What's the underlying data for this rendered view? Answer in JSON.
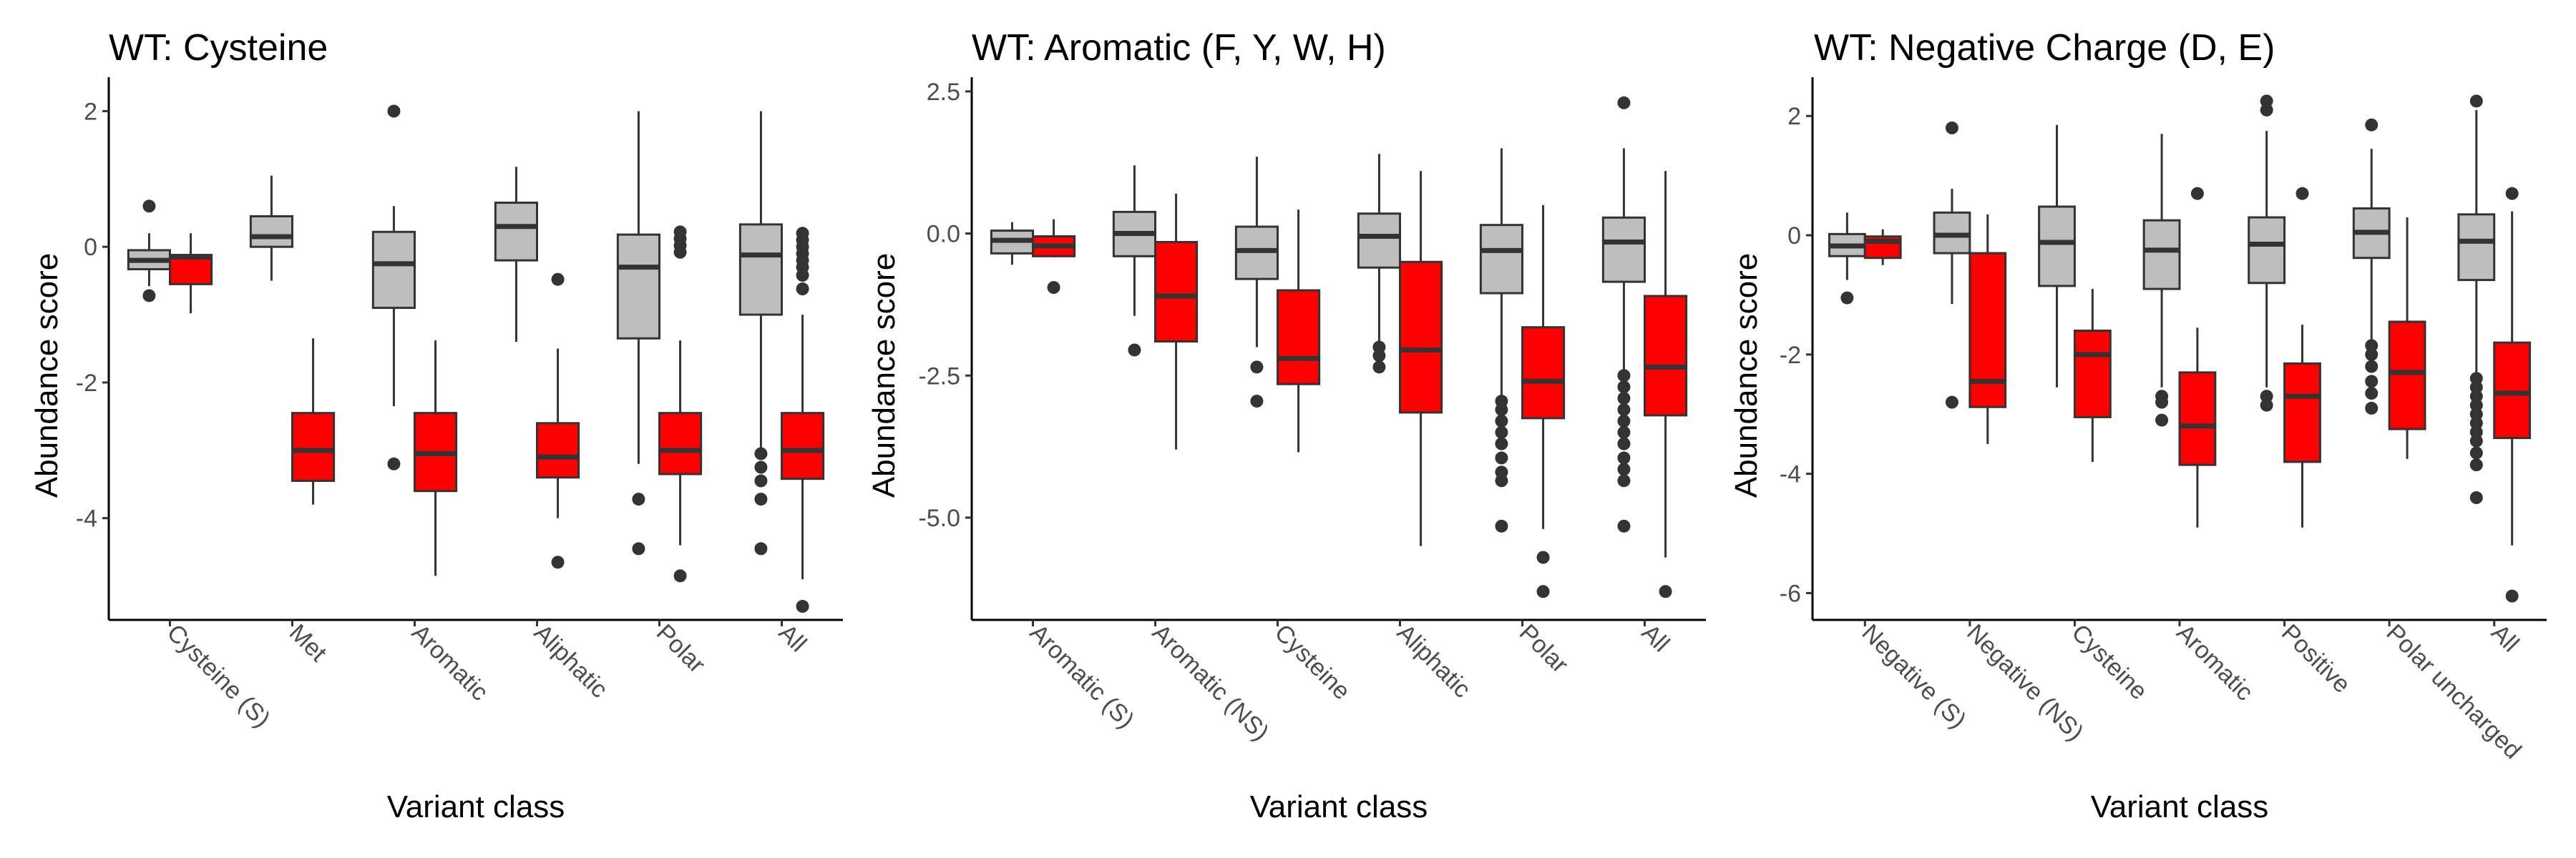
{
  "colors": {
    "WT": "#bebebe",
    "mutant": "#ff0000"
  },
  "chart_data": [
    {
      "type": "boxplot",
      "title": "WT: Cysteine",
      "xlabel": "Variant class",
      "ylabel": "Abundance score",
      "ylim": [
        -5.5,
        2.5
      ],
      "yticks": [
        2,
        0,
        -2,
        -4
      ],
      "ytick_labels": [
        "2",
        "0",
        "-2",
        "-4"
      ],
      "categories": [
        "Cysteine (S)",
        "Met",
        "Aromatic",
        "Aliphatic",
        "Polar",
        "All"
      ],
      "boxes": [
        {
          "cat": 0,
          "group": "WT",
          "whislo": -0.58,
          "q1": -0.33,
          "med": -0.2,
          "q3": -0.05,
          "whishi": 0.2,
          "fliers": [
            0.6,
            -0.72
          ]
        },
        {
          "cat": 0,
          "group": "mutant",
          "whislo": -0.98,
          "q1": -0.55,
          "med": -0.15,
          "q3": -0.12,
          "whishi": 0.2,
          "fliers": []
        },
        {
          "cat": 1,
          "group": "WT",
          "whislo": -0.5,
          "q1": 0.0,
          "med": 0.15,
          "q3": 0.45,
          "whishi": 1.05,
          "fliers": []
        },
        {
          "cat": 1,
          "group": "mutant",
          "whislo": -3.8,
          "q1": -3.45,
          "med": -3.0,
          "q3": -2.45,
          "whishi": -1.35,
          "fliers": []
        },
        {
          "cat": 2,
          "group": "WT",
          "whislo": -2.35,
          "q1": -0.9,
          "med": -0.25,
          "q3": 0.22,
          "whishi": 0.6,
          "fliers": [
            2.0,
            -3.2
          ]
        },
        {
          "cat": 2,
          "group": "mutant",
          "whislo": -4.85,
          "q1": -3.6,
          "med": -3.05,
          "q3": -2.45,
          "whishi": -1.38,
          "fliers": []
        },
        {
          "cat": 3,
          "group": "WT",
          "whislo": -1.4,
          "q1": -0.2,
          "med": 0.3,
          "q3": 0.65,
          "whishi": 1.18,
          "fliers": []
        },
        {
          "cat": 3,
          "group": "mutant",
          "whislo": -4.0,
          "q1": -3.4,
          "med": -3.1,
          "q3": -2.6,
          "whishi": -1.5,
          "fliers": [
            -0.48,
            -4.65
          ]
        },
        {
          "cat": 4,
          "group": "WT",
          "whislo": -3.2,
          "q1": -1.35,
          "med": -0.3,
          "q3": 0.18,
          "whishi": 2.0,
          "fliers": [
            -3.72,
            -4.45
          ]
        },
        {
          "cat": 4,
          "group": "mutant",
          "whislo": -4.4,
          "q1": -3.35,
          "med": -3.0,
          "q3": -2.45,
          "whishi": -1.38,
          "fliers": [
            0.22,
            0.12,
            0.02,
            -0.08,
            -4.85
          ]
        },
        {
          "cat": 5,
          "group": "WT",
          "whislo": -3.0,
          "q1": -1.0,
          "med": -0.12,
          "q3": 0.33,
          "whishi": 2.0,
          "fliers": [
            -3.05,
            -3.25,
            -3.45,
            -3.72,
            -4.45
          ]
        },
        {
          "cat": 5,
          "group": "mutant",
          "whislo": -4.9,
          "q1": -3.42,
          "med": -3.0,
          "q3": -2.45,
          "whishi": -1.0,
          "fliers": [
            0.2,
            0.1,
            0.0,
            -0.1,
            -0.2,
            -0.3,
            -0.42,
            -0.62,
            -5.3
          ]
        }
      ]
    },
    {
      "type": "boxplot",
      "title": "WT: Aromatic (F, Y, W, H)",
      "xlabel": "Variant class",
      "ylabel": "Abundance score",
      "ylim": [
        -6.8,
        2.75
      ],
      "yticks": [
        2.5,
        0,
        -2.5,
        -5
      ],
      "ytick_labels": [
        "2.5",
        "0.0",
        "-2.5",
        "-5.0"
      ],
      "categories": [
        "Aromatic (S)",
        "Aromatic (NS)",
        "Cysteine",
        "Aliphatic",
        "Polar",
        "All"
      ],
      "boxes": [
        {
          "cat": 0,
          "group": "WT",
          "whislo": -0.55,
          "q1": -0.35,
          "med": -0.12,
          "q3": 0.05,
          "whishi": 0.2,
          "fliers": []
        },
        {
          "cat": 0,
          "group": "mutant",
          "whislo": -0.42,
          "q1": -0.4,
          "med": -0.22,
          "q3": -0.05,
          "whishi": 0.25,
          "fliers": [
            -0.95
          ]
        },
        {
          "cat": 1,
          "group": "WT",
          "whislo": -1.45,
          "q1": -0.4,
          "med": 0.0,
          "q3": 0.38,
          "whishi": 1.2,
          "fliers": [
            -2.05
          ]
        },
        {
          "cat": 1,
          "group": "mutant",
          "whislo": -3.8,
          "q1": -1.9,
          "med": -1.1,
          "q3": -0.15,
          "whishi": 0.7,
          "fliers": []
        },
        {
          "cat": 2,
          "group": "WT",
          "whislo": -2.0,
          "q1": -0.8,
          "med": -0.3,
          "q3": 0.12,
          "whishi": 1.35,
          "fliers": [
            -2.35,
            -2.95
          ]
        },
        {
          "cat": 2,
          "group": "mutant",
          "whislo": -3.85,
          "q1": -2.65,
          "med": -2.2,
          "q3": -1.0,
          "whishi": 0.42,
          "fliers": []
        },
        {
          "cat": 3,
          "group": "WT",
          "whislo": -1.95,
          "q1": -0.6,
          "med": -0.05,
          "q3": 0.35,
          "whishi": 1.4,
          "fliers": [
            -2.0,
            -2.15,
            -2.35
          ]
        },
        {
          "cat": 3,
          "group": "mutant",
          "whislo": -5.5,
          "q1": -3.15,
          "med": -2.05,
          "q3": -0.5,
          "whishi": 1.1,
          "fliers": []
        },
        {
          "cat": 4,
          "group": "WT",
          "whislo": -2.85,
          "q1": -1.05,
          "med": -0.3,
          "q3": 0.15,
          "whishi": 1.5,
          "fliers": [
            -2.95,
            -3.1,
            -3.3,
            -3.5,
            -3.7,
            -3.95,
            -4.2,
            -4.35,
            -5.15
          ]
        },
        {
          "cat": 4,
          "group": "mutant",
          "whislo": -5.2,
          "q1": -3.25,
          "med": -2.6,
          "q3": -1.65,
          "whishi": 0.5,
          "fliers": [
            -5.7,
            -6.3
          ]
        },
        {
          "cat": 5,
          "group": "WT",
          "whislo": -2.4,
          "q1": -0.85,
          "med": -0.15,
          "q3": 0.28,
          "whishi": 1.5,
          "fliers": [
            2.3,
            -2.5,
            -2.7,
            -2.9,
            -3.1,
            -3.3,
            -3.5,
            -3.7,
            -3.95,
            -4.15,
            -4.35,
            -5.15
          ]
        },
        {
          "cat": 5,
          "group": "mutant",
          "whislo": -5.7,
          "q1": -3.2,
          "med": -2.35,
          "q3": -1.1,
          "whishi": 1.1,
          "fliers": [
            -6.3
          ]
        }
      ]
    },
    {
      "type": "boxplot",
      "title": "WT: Negative Charge (D, E)",
      "xlabel": "Variant class",
      "ylabel": "Abundance score",
      "ylim": [
        -6.45,
        2.65
      ],
      "yticks": [
        2,
        0,
        -2,
        -4,
        -6
      ],
      "ytick_labels": [
        "2",
        "0",
        "-2",
        "-4",
        "-6"
      ],
      "categories": [
        "Negative (S)",
        "Negative (NS)",
        "Cysteine",
        "Aromatic",
        "Positive",
        "Polar uncharged",
        "All"
      ],
      "boxes": [
        {
          "cat": 0,
          "group": "WT",
          "whislo": -0.75,
          "q1": -0.35,
          "med": -0.18,
          "q3": 0.02,
          "whishi": 0.38,
          "fliers": [
            -1.05
          ]
        },
        {
          "cat": 0,
          "group": "mutant",
          "whislo": -0.5,
          "q1": -0.38,
          "med": -0.1,
          "q3": -0.02,
          "whishi": 0.1,
          "fliers": []
        },
        {
          "cat": 1,
          "group": "WT",
          "whislo": -1.15,
          "q1": -0.3,
          "med": 0.0,
          "q3": 0.38,
          "whishi": 0.78,
          "fliers": [
            1.8,
            -2.8
          ]
        },
        {
          "cat": 1,
          "group": "mutant",
          "whislo": -3.5,
          "q1": -2.88,
          "med": -2.45,
          "q3": -0.3,
          "whishi": 0.35,
          "fliers": []
        },
        {
          "cat": 2,
          "group": "WT",
          "whislo": -2.55,
          "q1": -0.85,
          "med": -0.12,
          "q3": 0.48,
          "whishi": 1.85,
          "fliers": []
        },
        {
          "cat": 2,
          "group": "mutant",
          "whislo": -3.8,
          "q1": -3.05,
          "med": -2.0,
          "q3": -1.6,
          "whishi": -0.9,
          "fliers": []
        },
        {
          "cat": 3,
          "group": "WT",
          "whislo": -2.55,
          "q1": -0.9,
          "med": -0.25,
          "q3": 0.25,
          "whishi": 1.7,
          "fliers": [
            -2.7,
            -2.8,
            -3.1
          ]
        },
        {
          "cat": 3,
          "group": "mutant",
          "whislo": -4.9,
          "q1": -3.85,
          "med": -3.2,
          "q3": -2.3,
          "whishi": -1.55,
          "fliers": [
            0.7
          ]
        },
        {
          "cat": 4,
          "group": "WT",
          "whislo": -2.55,
          "q1": -0.8,
          "med": -0.15,
          "q3": 0.3,
          "whishi": 1.75,
          "fliers": [
            2.25,
            2.1,
            -2.7,
            -2.85
          ]
        },
        {
          "cat": 4,
          "group": "mutant",
          "whislo": -4.9,
          "q1": -3.8,
          "med": -2.7,
          "q3": -2.15,
          "whishi": -1.5,
          "fliers": [
            0.7
          ]
        },
        {
          "cat": 5,
          "group": "WT",
          "whislo": -1.75,
          "q1": -0.38,
          "med": 0.05,
          "q3": 0.45,
          "whishi": 1.45,
          "fliers": [
            1.85,
            -1.85,
            -2.0,
            -2.2,
            -2.45,
            -2.65,
            -2.9
          ]
        },
        {
          "cat": 5,
          "group": "mutant",
          "whislo": -3.75,
          "q1": -3.25,
          "med": -2.3,
          "q3": -1.45,
          "whishi": 0.3,
          "fliers": []
        },
        {
          "cat": 6,
          "group": "WT",
          "whislo": -2.3,
          "q1": -0.75,
          "med": -0.1,
          "q3": 0.35,
          "whishi": 2.1,
          "fliers": [
            2.25,
            -2.4,
            -2.55,
            -2.7,
            -2.85,
            -3.0,
            -3.15,
            -3.3,
            -3.45,
            -3.65,
            -3.85,
            -4.4
          ]
        },
        {
          "cat": 6,
          "group": "mutant",
          "whislo": -5.2,
          "q1": -3.4,
          "med": -2.65,
          "q3": -1.8,
          "whishi": 0.4,
          "fliers": [
            0.7,
            -6.05
          ]
        }
      ]
    }
  ]
}
